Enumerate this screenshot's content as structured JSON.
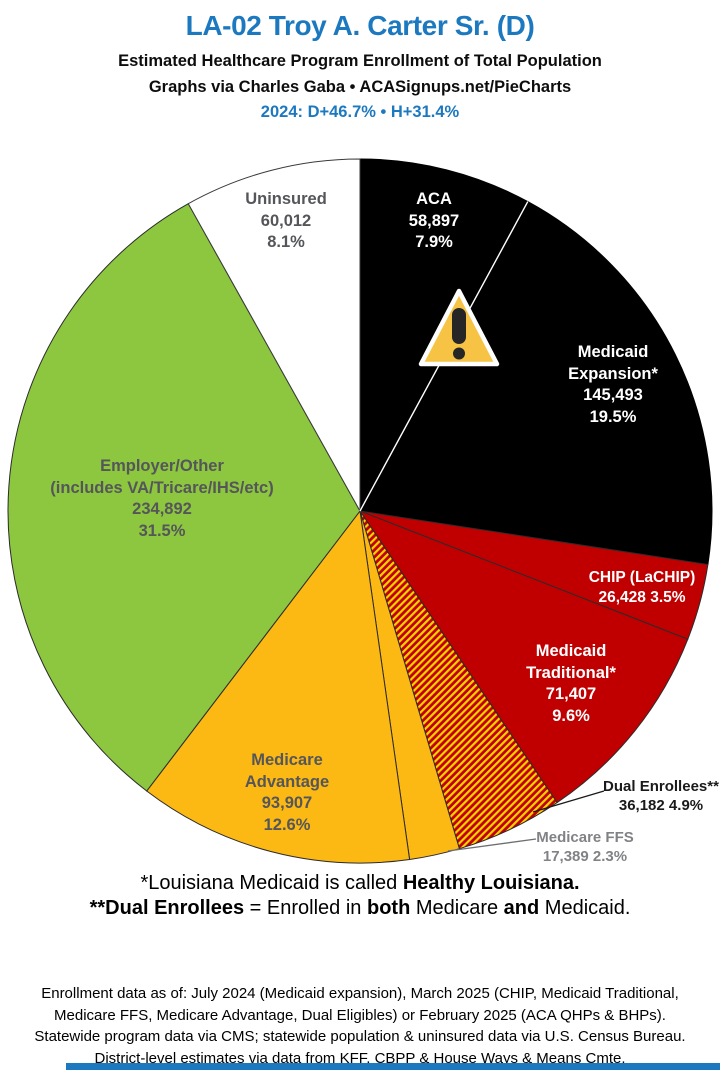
{
  "header": {
    "title": "LA-02 Troy A. Carter Sr. (D)",
    "subtitle": "Estimated Healthcare Program Enrollment of Total Population",
    "credit": "Graphs via Charles Gaba   •   ACASignups.net/PieCharts",
    "partisan_line": "2024: D+46.7%  •  H+31.4%",
    "accent_color": "#1c79c0"
  },
  "chart_data": {
    "type": "pie",
    "title": "Estimated Healthcare Program Enrollment of Total Population",
    "units": "people",
    "start_angle": "12 o'clock, clockwise",
    "total_pct": 99.9,
    "slices": [
      {
        "id": "aca",
        "name": "ACA",
        "label_lines": [
          "ACA"
        ],
        "value": 58897,
        "value_display": "58,897",
        "pct": 7.9,
        "pct_display": "7.9%",
        "color": "#000000",
        "stroke": "#000000",
        "text_color": "#ffffff",
        "white_divider_after": true
      },
      {
        "id": "medicaid-expansion",
        "name": "Medicaid Expansion*",
        "label_lines": [
          "Medicaid",
          "Expansion*"
        ],
        "value": 145493,
        "value_display": "145,493",
        "pct": 19.5,
        "pct_display": "19.5%",
        "color": "#000000",
        "stroke": "#000000",
        "text_color": "#ffffff"
      },
      {
        "id": "chip",
        "name": "CHIP (LaCHIP)",
        "label_lines": [
          "CHIP (LaCHIP)"
        ],
        "value": 26428,
        "value_display": "26,428",
        "pct": 3.5,
        "pct_display": "3.5%",
        "color": "#c00000",
        "text_color": "#ffffff"
      },
      {
        "id": "medicaid-traditional",
        "name": "Medicaid Traditional*",
        "label_lines": [
          "Medicaid",
          "Traditional*"
        ],
        "value": 71407,
        "value_display": "71,407",
        "pct": 9.6,
        "pct_display": "9.6%",
        "color": "#c00000",
        "text_color": "#ffffff"
      },
      {
        "id": "dual-enrollees",
        "name": "Dual Enrollees**",
        "label_lines": [
          "Dual Enrollees**"
        ],
        "value": 36182,
        "value_display": "36,182",
        "pct": 4.9,
        "pct_display": "4.9%",
        "hatch": true,
        "hatch_colors": [
          "#c00000",
          "#ffd400"
        ],
        "text_color": "#1a1a1a"
      },
      {
        "id": "medicare-ffs",
        "name": "Medicare FFS",
        "label_lines": [
          "Medicare FFS"
        ],
        "value": 17389,
        "value_display": "17,389",
        "pct": 2.3,
        "pct_display": "2.3%",
        "color": "#fcb813",
        "text_color": "#808285"
      },
      {
        "id": "medicare-advantage",
        "name": "Medicare Advantage",
        "label_lines": [
          "Medicare",
          "Advantage"
        ],
        "value": 93907,
        "value_display": "93,907",
        "pct": 12.6,
        "pct_display": "12.6%",
        "color": "#fcb813",
        "text_color": "#55565a"
      },
      {
        "id": "employer-other",
        "name": "Employer/Other (includes VA/Tricare/IHS/etc)",
        "label_lines": [
          "Employer/Other",
          "(includes VA/Tricare/IHS/etc)"
        ],
        "value": 234892,
        "value_display": "234,892",
        "pct": 31.5,
        "pct_display": "31.5%",
        "color": "#8dc63f",
        "text_color": "#55565a"
      },
      {
        "id": "uninsured",
        "name": "Uninsured",
        "label_lines": [
          "Uninsured"
        ],
        "value": 60012,
        "value_display": "60,012",
        "pct": 8.1,
        "pct_display": "8.1%",
        "color": "#ffffff",
        "stroke": "#3a3a3a",
        "text_color": "#55565a"
      }
    ],
    "legend": "labels drawn on slices; Dual Enrollees and Medicare FFS use outside callout lines",
    "icons": {
      "warning_icon": {
        "glyph": "warning-triangle-exclamation",
        "fill": "#f6c344",
        "mark": "#262626",
        "border": "#ffffff"
      }
    }
  },
  "footnotes": {
    "line1": [
      {
        "t": "*Louisiana Medicaid is called ",
        "b": false
      },
      {
        "t": "Healthy Louisiana.",
        "b": true
      }
    ],
    "line2": [
      {
        "t": "**Dual Enrollees",
        "b": true
      },
      {
        "t": " = Enrolled in ",
        "b": false
      },
      {
        "t": "both",
        "b": true
      },
      {
        "t": " Medicare ",
        "b": false
      },
      {
        "t": "and",
        "b": true
      },
      {
        "t": " Medicaid.",
        "b": false
      }
    ]
  },
  "source_block": {
    "lines": [
      "Enrollment data as of: July 2024 (Medicaid expansion), March 2025 (CHIP, Medicaid Traditional,",
      "Medicare FFS, Medicare Advantage, Dual Eligibles) or February 2025 (ACA QHPs & BHPs).",
      "Statewide program data via CMS; statewide population & uninsured data via U.S. Census Bureau.",
      "District-level estimates via data from KFF, CBPP & House Ways & Means Cmte."
    ]
  }
}
